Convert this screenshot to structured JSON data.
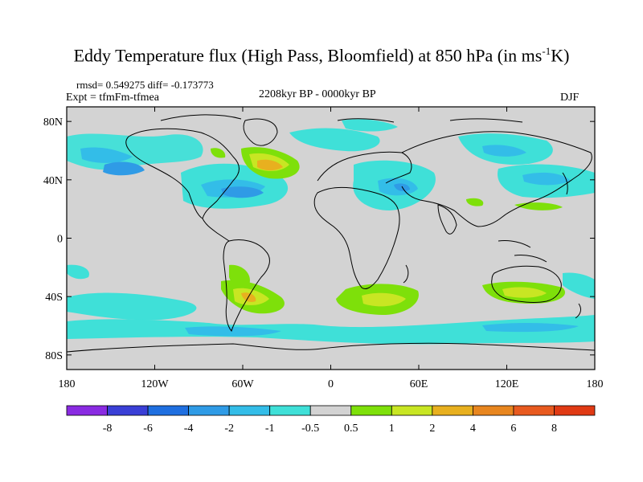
{
  "title": {
    "main": "Eddy Temperature flux (High Pass, Bloomfield) at 850 hPa (in ms",
    "sup": "-1",
    "end": "K)"
  },
  "stats": "rmsd= 0.549275 diff= -0.173773",
  "experiment": "Expt = tfmFm-tfmea",
  "period": "2208kyr BP - 0000kyr BP",
  "season": "DJF",
  "map": {
    "background_color": "#d3d3d3",
    "lat_range": [
      -90,
      90
    ],
    "lon_range": [
      -180,
      180
    ],
    "lat_ticks": [
      "80N",
      "40N",
      "0",
      "40S",
      "80S"
    ],
    "lon_ticks": [
      "180",
      "120W",
      "60W",
      "0",
      "60E",
      "120E",
      "180"
    ]
  },
  "colorbar": {
    "labels": [
      "-8",
      "-6",
      "-4",
      "-2",
      "-1",
      "-0.5",
      "0.5",
      "1",
      "2",
      "4",
      "6",
      "8"
    ],
    "colors": [
      "#8a2be2",
      "#3a3fd6",
      "#1f6fe0",
      "#2f9be6",
      "#33bde8",
      "#3fe0d8",
      "#d3d3d3",
      "#7ee00a",
      "#c8e623",
      "#e8b01f",
      "#e8861f",
      "#e85a1f",
      "#e03a14"
    ]
  }
}
